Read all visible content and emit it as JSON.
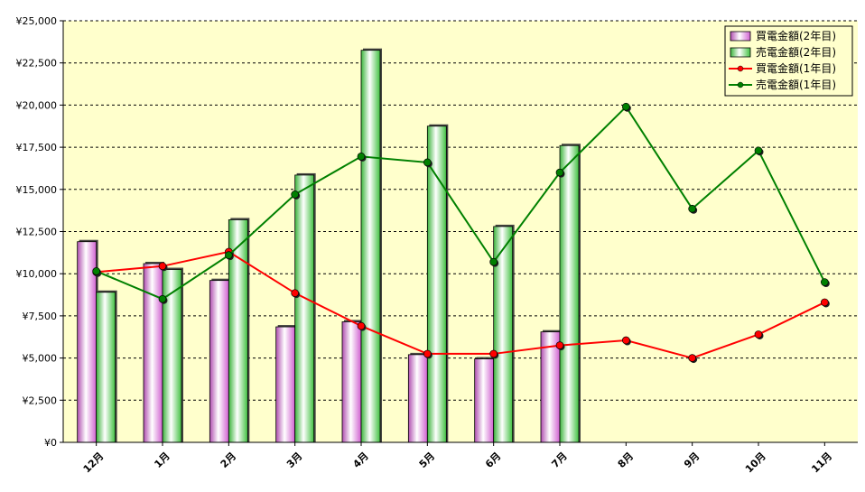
{
  "chart_data": {
    "type": "bar",
    "title": "",
    "xlabel": "",
    "ylabel": "",
    "ylim": [
      0,
      25000
    ],
    "y_ticks": [
      "¥0",
      "¥2,500",
      "¥5,000",
      "¥7,500",
      "¥10,000",
      "¥12,500",
      "¥15,000",
      "¥17,500",
      "¥20,000",
      "¥22,500",
      "¥25,000"
    ],
    "y_tick_values": [
      0,
      2500,
      5000,
      7500,
      10000,
      12500,
      15000,
      17500,
      20000,
      22500,
      25000
    ],
    "categories": [
      "12月",
      "1月",
      "2月",
      "3月",
      "4月",
      "5月",
      "6月",
      "7月",
      "8月",
      "9月",
      "10月",
      "11月"
    ],
    "grid": "horizontal-dashed",
    "legend_position": "top-right",
    "plot_background": "#ffffcc",
    "series": [
      {
        "name": "買電金額(2年目)",
        "kind": "bar",
        "color": "#ff99ff",
        "values": [
          11900,
          10600,
          9600,
          6850,
          7150,
          5200,
          4950,
          6550,
          null,
          null,
          null,
          null
        ]
      },
      {
        "name": "売電金額(2年目)",
        "kind": "bar",
        "color": "#99ff99",
        "values": [
          8900,
          10250,
          13200,
          15850,
          23250,
          18750,
          12800,
          17600,
          null,
          null,
          null,
          null
        ]
      },
      {
        "name": "買電金額(1年目)",
        "kind": "line",
        "color": "#ff0000",
        "values": [
          10100,
          10450,
          11300,
          8850,
          6900,
          5250,
          5250,
          5750,
          6050,
          5000,
          6400,
          8300
        ]
      },
      {
        "name": "売電金額(1年目)",
        "kind": "line",
        "color": "#008000",
        "values": [
          10150,
          8500,
          11100,
          14700,
          16950,
          16600,
          10700,
          16000,
          19900,
          13850,
          17300,
          9500
        ]
      }
    ]
  }
}
